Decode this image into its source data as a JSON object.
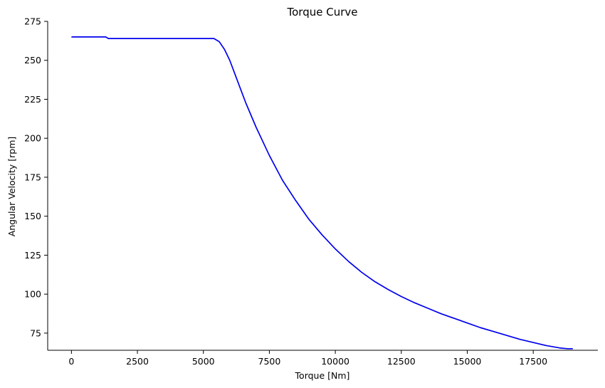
{
  "chart_data": {
    "type": "line",
    "title": "Torque Curve",
    "xlabel": "Torque [Nm]",
    "ylabel": "Angular Velocity [rpm]",
    "xlim": [
      -900,
      19950
    ],
    "ylim": [
      64,
      275
    ],
    "x_ticks": [
      0,
      2500,
      5000,
      7500,
      10000,
      12500,
      15000,
      17500
    ],
    "y_ticks": [
      75,
      100,
      125,
      150,
      175,
      200,
      225,
      250,
      275
    ],
    "grid": false,
    "legend": "none",
    "series": [
      {
        "color": "#0000ee",
        "x": [
          0,
          1300,
          1400,
          2500,
          5000,
          5400,
          5600,
          5800,
          6000,
          6200,
          6400,
          6600,
          6800,
          7000,
          7500,
          8000,
          8500,
          9000,
          9500,
          10000,
          10500,
          11000,
          11500,
          12000,
          12500,
          13000,
          13500,
          14000,
          14500,
          15000,
          15500,
          16000,
          16500,
          17000,
          17500,
          18000,
          18500,
          18800,
          19000
        ],
        "y": [
          265,
          265,
          264,
          264,
          264,
          264,
          262,
          257,
          250,
          241,
          232,
          223,
          215,
          207,
          189,
          173,
          160,
          148,
          138,
          129,
          121,
          114,
          108,
          103,
          98.5,
          94.5,
          91,
          87.5,
          84.5,
          81.5,
          78.5,
          76,
          73.5,
          71,
          69,
          67,
          65.5,
          65,
          65
        ]
      }
    ]
  }
}
